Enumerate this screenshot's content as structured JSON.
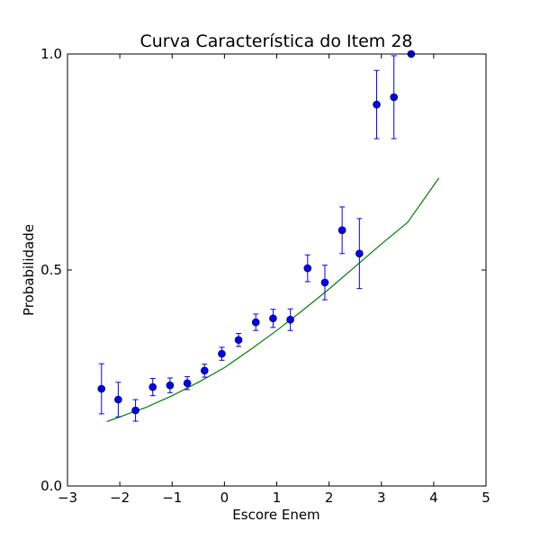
{
  "chart_data": {
    "type": "scatter",
    "title": "Curva Característica do Item 28",
    "xlabel": "Escore Enem",
    "ylabel": "Probabilidade",
    "xlim": [
      -3,
      5
    ],
    "ylim": [
      0.0,
      1.0
    ],
    "xticks": [
      -3,
      -2,
      -1,
      0,
      1,
      2,
      3,
      4,
      5
    ],
    "xtick_labels": [
      "−3",
      "−2",
      "−1",
      "0",
      "1",
      "2",
      "3",
      "4",
      "5"
    ],
    "yticks": [
      0.0,
      0.5,
      1.0
    ],
    "ytick_labels": [
      "0.0",
      "0.5",
      "1.0"
    ],
    "grid": false,
    "series": [
      {
        "type": "scatter",
        "color": "#0000ff",
        "error_bar_color": "#0000ff",
        "x": [
          -2.35,
          -2.03,
          -1.7,
          -1.37,
          -1.04,
          -0.71,
          -0.38,
          -0.05,
          0.27,
          0.6,
          0.93,
          1.26,
          1.59,
          1.92,
          2.25,
          2.58,
          2.91,
          3.24,
          3.57
        ],
        "y": [
          0.225,
          0.2,
          0.175,
          0.229,
          0.233,
          0.238,
          0.267,
          0.306,
          0.338,
          0.379,
          0.388,
          0.385,
          0.504,
          0.471,
          0.592,
          0.538,
          0.883,
          0.9,
          1.0
        ],
        "yerr_low": [
          0.058,
          0.04,
          0.025,
          0.02,
          0.017,
          0.015,
          0.015,
          0.015,
          0.015,
          0.019,
          0.021,
          0.025,
          0.031,
          0.04,
          0.054,
          0.081,
          0.079,
          0.096,
          0.0
        ],
        "yerr_high": [
          0.058,
          0.04,
          0.025,
          0.02,
          0.017,
          0.015,
          0.015,
          0.015,
          0.015,
          0.019,
          0.021,
          0.025,
          0.031,
          0.04,
          0.054,
          0.081,
          0.079,
          0.096,
          0.0
        ]
      },
      {
        "type": "line",
        "color": "#008000",
        "x": [
          -2.25,
          -2.0,
          -1.5,
          -1.0,
          -0.5,
          0.0,
          0.5,
          1.0,
          1.5,
          2.0,
          2.5,
          3.0,
          3.5,
          4.1
        ],
        "y": [
          0.149,
          0.16,
          0.182,
          0.209,
          0.24,
          0.274,
          0.316,
          0.36,
          0.407,
          0.456,
          0.508,
          0.56,
          0.61,
          0.713
        ]
      }
    ]
  }
}
